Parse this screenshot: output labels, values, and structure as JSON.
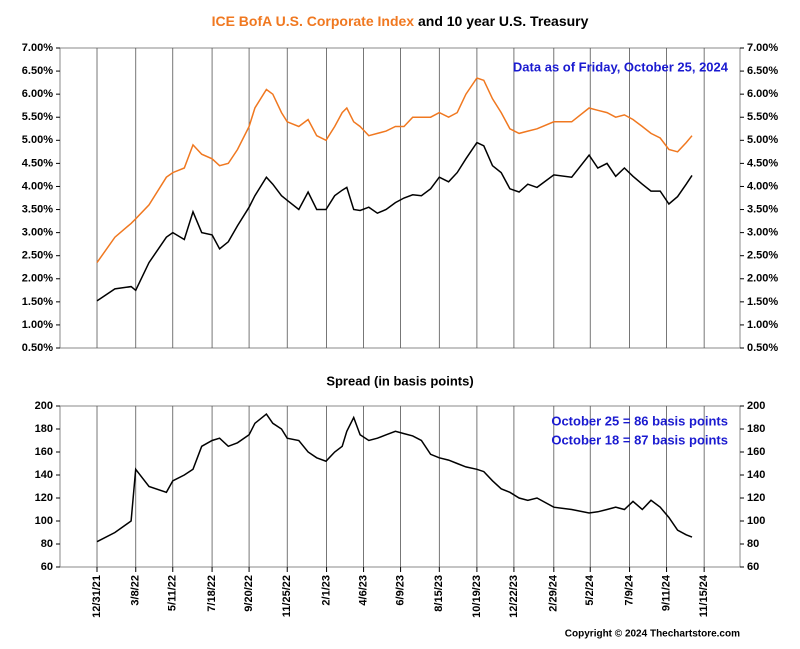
{
  "chart_data": [
    {
      "type": "line",
      "title_parts": [
        {
          "text": "ICE BofA U.S. Corporate Index",
          "color": "#f07820"
        },
        {
          "text": " and 10 year U.S. Treasury",
          "color": "#000000"
        }
      ],
      "annotation": "Data as of Friday, October 25, 2024",
      "x": [
        "12/31/21",
        "1/31/22",
        "2/28/22",
        "3/8/22",
        "3/31/22",
        "4/30/22",
        "5/11/22",
        "5/31/22",
        "6/15/22",
        "6/30/22",
        "7/18/22",
        "7/31/22",
        "8/15/22",
        "8/31/22",
        "9/20/22",
        "9/30/22",
        "10/20/22",
        "10/31/22",
        "11/15/22",
        "11/25/22",
        "12/15/22",
        "12/31/22",
        "1/15/23",
        "1/31/23",
        "2/15/23",
        "2/28/23",
        "3/8/23",
        "3/20/23",
        "3/31/23",
        "4/15/23",
        "4/30/23",
        "5/15/23",
        "5/31/23",
        "6/15/23",
        "6/30/23",
        "7/15/23",
        "7/31/23",
        "8/15/23",
        "8/31/23",
        "9/15/23",
        "9/30/23",
        "10/19/23",
        "10/31/23",
        "11/15/23",
        "11/30/23",
        "12/15/23",
        "12/31/23",
        "1/15/24",
        "1/31/24",
        "2/29/24",
        "3/31/24",
        "4/30/24",
        "5/15/24",
        "5/31/24",
        "6/15/24",
        "6/30/24",
        "7/15/24",
        "7/31/24",
        "8/15/24",
        "8/31/24",
        "9/15/24",
        "9/30/24",
        "10/15/24",
        "10/25/24"
      ],
      "series": [
        {
          "color": "#f07820",
          "values": [
            2.35,
            2.9,
            3.2,
            3.3,
            3.6,
            4.2,
            4.3,
            4.4,
            4.9,
            4.7,
            4.6,
            4.45,
            4.5,
            4.8,
            5.3,
            5.7,
            6.1,
            6.0,
            5.6,
            5.4,
            5.3,
            5.45,
            5.1,
            5.0,
            5.3,
            5.6,
            5.7,
            5.4,
            5.3,
            5.1,
            5.15,
            5.2,
            5.3,
            5.3,
            5.5,
            5.5,
            5.5,
            5.6,
            5.5,
            5.6,
            6.0,
            6.35,
            6.3,
            5.9,
            5.6,
            5.25,
            5.15,
            5.2,
            5.25,
            5.4,
            5.4,
            5.7,
            5.65,
            5.6,
            5.5,
            5.55,
            5.45,
            5.3,
            5.15,
            5.05,
            4.8,
            4.75,
            4.95,
            5.1
          ]
        },
        {
          "color": "#000000",
          "values": [
            1.52,
            1.78,
            1.83,
            1.75,
            2.35,
            2.9,
            3.0,
            2.85,
            3.45,
            3.0,
            2.95,
            2.65,
            2.8,
            3.15,
            3.55,
            3.8,
            4.2,
            4.05,
            3.8,
            3.7,
            3.5,
            3.88,
            3.5,
            3.5,
            3.8,
            3.92,
            3.98,
            3.5,
            3.48,
            3.55,
            3.42,
            3.5,
            3.65,
            3.75,
            3.82,
            3.8,
            3.95,
            4.2,
            4.1,
            4.3,
            4.6,
            4.95,
            4.88,
            4.45,
            4.3,
            3.95,
            3.88,
            4.05,
            3.98,
            4.25,
            4.2,
            4.68,
            4.4,
            4.5,
            4.22,
            4.4,
            4.22,
            4.05,
            3.9,
            3.9,
            3.62,
            3.78,
            4.05,
            4.24
          ]
        }
      ],
      "xlim": [
        "10/28/21",
        "1/16/25"
      ],
      "xticks": [
        "12/31/21",
        "3/8/22",
        "5/11/22",
        "7/18/22",
        "9/20/22",
        "11/25/22",
        "2/1/23",
        "4/6/23",
        "6/9/23",
        "8/15/23",
        "10/19/23",
        "12/22/23",
        "2/29/24",
        "5/2/24",
        "7/9/24",
        "9/11/24",
        "11/15/24"
      ],
      "ylim": [
        0.5,
        7.0
      ],
      "yticks": [
        {
          "value": 0.5,
          "label": "0.50%"
        },
        {
          "value": 1.0,
          "label": "1.00%"
        },
        {
          "value": 1.5,
          "label": "1.50%"
        },
        {
          "value": 2.0,
          "label": "2.00%"
        },
        {
          "value": 2.5,
          "label": "2.50%"
        },
        {
          "value": 3.0,
          "label": "3.00%"
        },
        {
          "value": 3.5,
          "label": "3.50%"
        },
        {
          "value": 4.0,
          "label": "4.00%"
        },
        {
          "value": 4.5,
          "label": "4.50%"
        },
        {
          "value": 5.0,
          "label": "5.00%"
        },
        {
          "value": 5.5,
          "label": "5.50%"
        },
        {
          "value": 6.0,
          "label": "6.00%"
        },
        {
          "value": 6.5,
          "label": "6.50%"
        },
        {
          "value": 7.0,
          "label": "7.00%"
        }
      ],
      "grid": "x"
    },
    {
      "type": "line",
      "title": "Spread (in basis points)",
      "annotations": [
        "October 25 = 86 basis points",
        "October 18 = 87 basis points"
      ],
      "x": [
        "12/31/21",
        "1/31/22",
        "2/28/22",
        "3/8/22",
        "3/31/22",
        "4/30/22",
        "5/11/22",
        "5/31/22",
        "6/15/22",
        "6/30/22",
        "7/18/22",
        "7/31/22",
        "8/15/22",
        "8/31/22",
        "9/20/22",
        "9/30/22",
        "10/20/22",
        "10/31/22",
        "11/15/22",
        "11/25/22",
        "12/15/22",
        "12/31/22",
        "1/15/23",
        "1/31/23",
        "2/15/23",
        "2/28/23",
        "3/8/23",
        "3/20/23",
        "3/31/23",
        "4/15/23",
        "4/30/23",
        "5/15/23",
        "5/31/23",
        "6/15/23",
        "6/30/23",
        "7/15/23",
        "7/31/23",
        "8/15/23",
        "8/31/23",
        "9/15/23",
        "9/30/23",
        "10/19/23",
        "10/31/23",
        "11/15/23",
        "11/30/23",
        "12/15/23",
        "12/31/23",
        "1/15/24",
        "1/31/24",
        "2/29/24",
        "3/31/24",
        "4/30/24",
        "5/15/24",
        "5/31/24",
        "6/15/24",
        "6/30/24",
        "7/15/24",
        "7/31/24",
        "8/15/24",
        "8/31/24",
        "9/15/24",
        "9/30/24",
        "10/15/24",
        "10/25/24"
      ],
      "series": [
        {
          "color": "#000000",
          "values": [
            82,
            90,
            100,
            145,
            130,
            125,
            135,
            140,
            145,
            165,
            170,
            172,
            165,
            168,
            175,
            185,
            193,
            185,
            180,
            172,
            170,
            160,
            155,
            152,
            160,
            165,
            178,
            190,
            175,
            170,
            172,
            175,
            178,
            176,
            174,
            170,
            158,
            155,
            153,
            150,
            147,
            145,
            143,
            135,
            128,
            125,
            120,
            118,
            120,
            112,
            110,
            107,
            108,
            110,
            112,
            110,
            117,
            110,
            118,
            112,
            103,
            92,
            88,
            86
          ]
        }
      ],
      "xlim": [
        "10/28/21",
        "1/16/25"
      ],
      "xticks": [
        "12/31/21",
        "3/8/22",
        "5/11/22",
        "7/18/22",
        "9/20/22",
        "11/25/22",
        "2/1/23",
        "4/6/23",
        "6/9/23",
        "8/15/23",
        "10/19/23",
        "12/22/23",
        "2/29/24",
        "5/2/24",
        "7/9/24",
        "9/11/24",
        "11/15/24"
      ],
      "ylim": [
        60,
        200
      ],
      "yticks": [
        60,
        80,
        100,
        120,
        140,
        160,
        180,
        200
      ],
      "grid": "x"
    }
  ],
  "copyright": "Copyright © 2024 Thechartstore.com"
}
